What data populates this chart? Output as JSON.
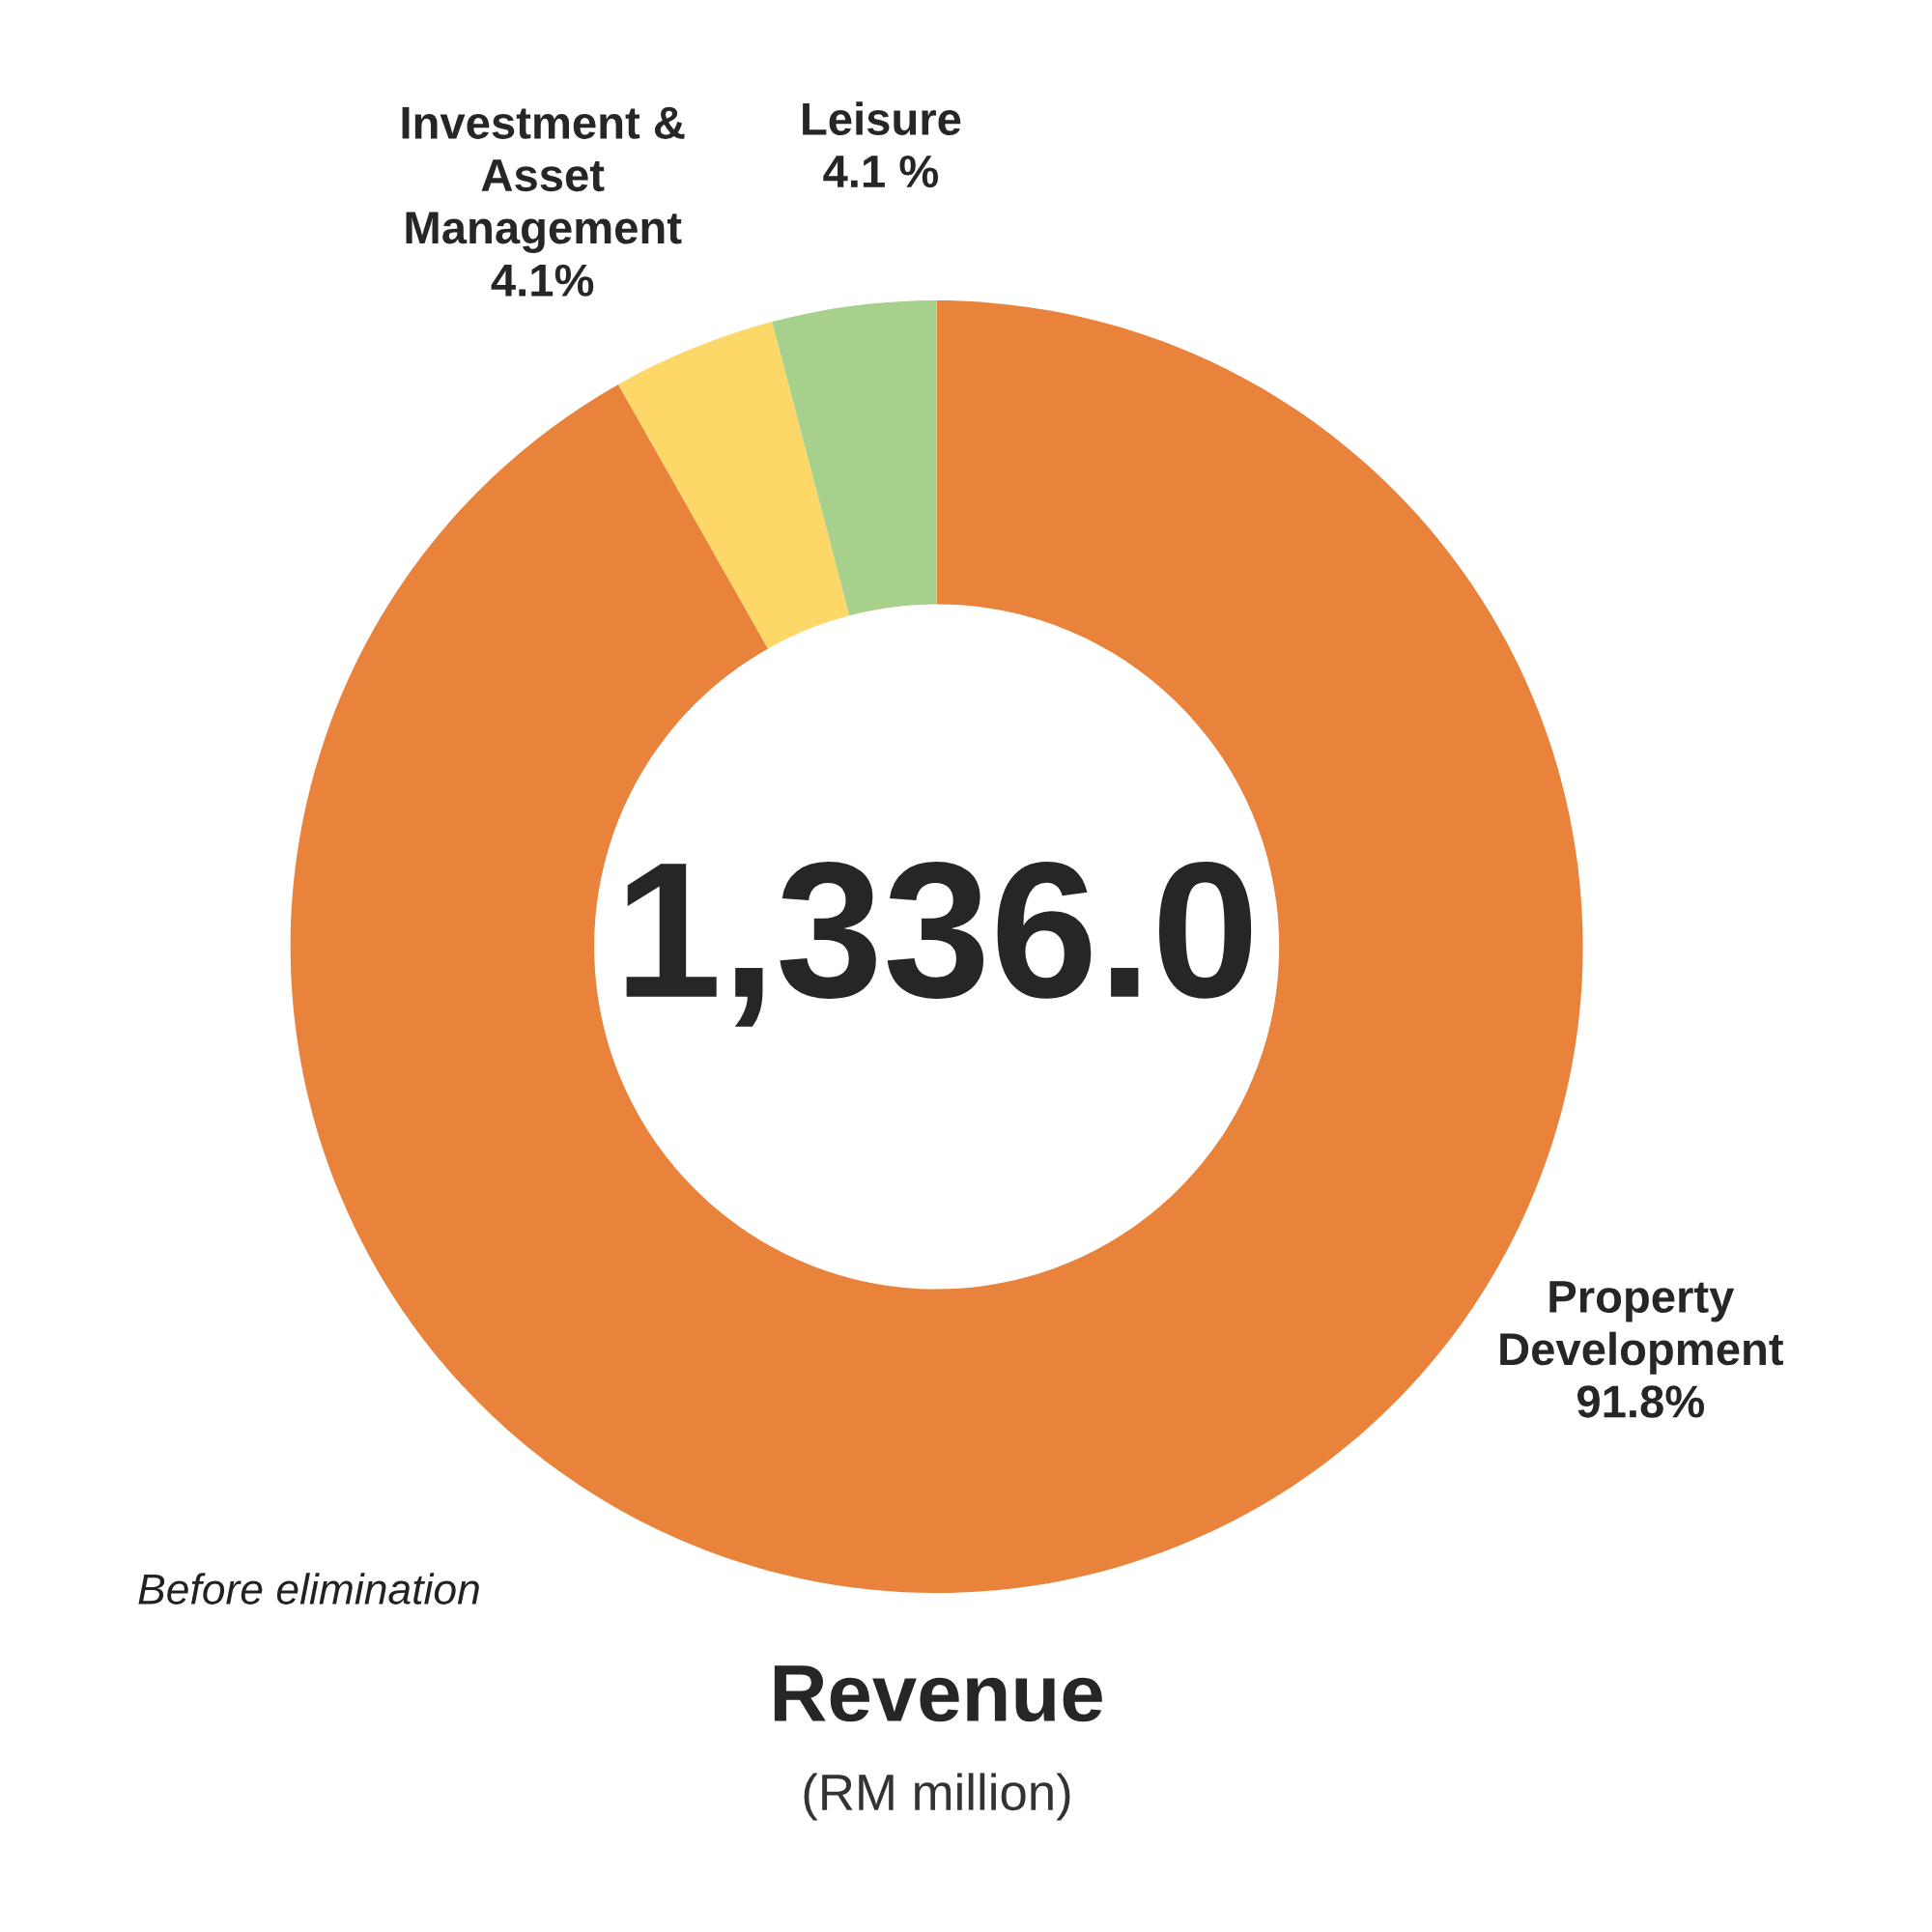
{
  "chart_data": {
    "type": "donut",
    "title": "Revenue",
    "subtitle": "(RM million)",
    "categories": [
      "Property\nDevelopment",
      "Investment &\nAsset\nManagement",
      "Leisure"
    ],
    "values": [
      91.8,
      4.1,
      4.1
    ],
    "value_labels": [
      "91.8%",
      "4.1%",
      "4.1 %"
    ],
    "colors": [
      "#e9823b",
      "#fdd868",
      "#a8d08d"
    ],
    "annotations": [
      "1,336.0",
      "Before elimination"
    ]
  }
}
